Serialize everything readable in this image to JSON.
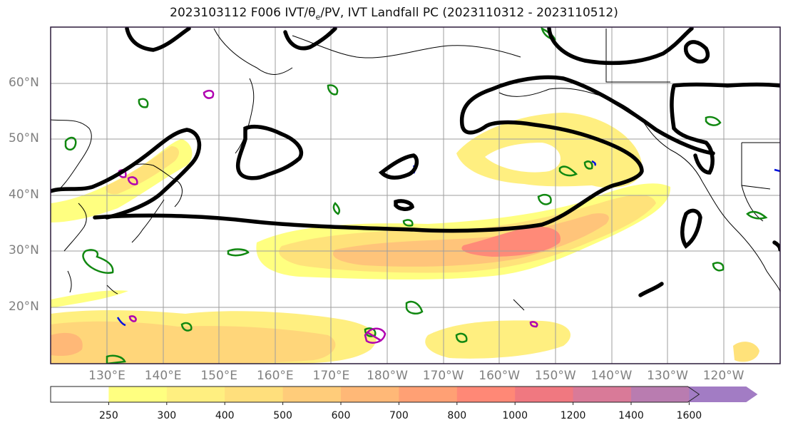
{
  "title": {
    "prefix": "2023103112 F006 IVT/θ",
    "sub": "e",
    "suffix": "/PV, IVT Landfall PC (2023110312 - 2023110512)"
  },
  "chart_data": {
    "type": "heatmap",
    "title": "2023103112 F006 IVT/θe/PV, IVT Landfall PC (2023110312 - 2023110512)",
    "y_ticks": [
      "60°N",
      "50°N",
      "40°N",
      "30°N",
      "20°N"
    ],
    "x_ticks": [
      "130°E",
      "140°E",
      "150°E",
      "160°E",
      "170°E",
      "180°W",
      "170°W",
      "160°W",
      "150°W",
      "140°W",
      "130°W",
      "120°W"
    ],
    "lon_range": [
      120,
      -110
    ],
    "lat_range": [
      10,
      70
    ],
    "grid": true,
    "colorbar": {
      "levels": [
        250,
        300,
        400,
        500,
        600,
        700,
        800,
        1000,
        1200,
        1400,
        1600
      ],
      "colors": [
        "#ffff80",
        "#ffef80",
        "#ffdf7c",
        "#ffcc7a",
        "#ffb877",
        "#ffa074",
        "#ff8876",
        "#f07880",
        "#d97a98",
        "#b97cb0",
        "#a27cc4"
      ],
      "extend": "max"
    },
    "contours": {
      "landfall_pc": "black thick lines",
      "pv_positive": "green lines",
      "pv_negative": "magenta lines",
      "theta_e": "blue lines"
    }
  }
}
